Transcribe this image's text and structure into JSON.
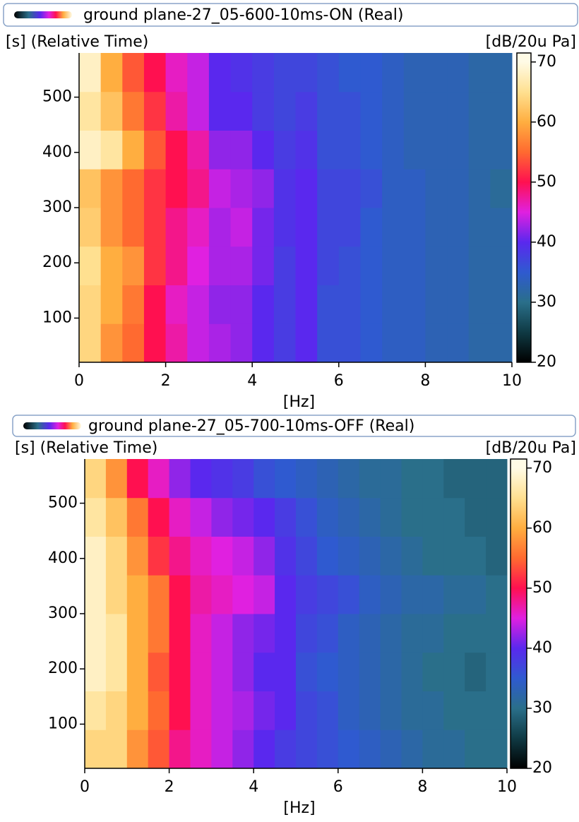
{
  "chart_data": [
    {
      "type": "heatmap",
      "title": "ground plane-27_05-600-10ms-ON (Real)",
      "y_label": "[s] (Relative Time)",
      "x_label": "[Hz]",
      "colorbar_label": "[dB/20u Pa]",
      "xlim": [
        0,
        10
      ],
      "xticks": [
        0,
        2,
        4,
        6,
        8,
        10
      ],
      "ylim": [
        20,
        580
      ],
      "yticks": [
        100,
        200,
        300,
        400,
        500
      ],
      "zlim": [
        20,
        71.5
      ],
      "zticks": [
        20,
        30,
        40,
        50,
        60,
        70
      ],
      "colorscale": [
        [
          20,
          "#000000"
        ],
        [
          25,
          "#0f3a44"
        ],
        [
          30,
          "#2a6f8a"
        ],
        [
          35,
          "#2f5ad0"
        ],
        [
          40,
          "#5a28ee"
        ],
        [
          45,
          "#e020e0"
        ],
        [
          50,
          "#ff1050"
        ],
        [
          55,
          "#ff6a30"
        ],
        [
          60,
          "#ffae40"
        ],
        [
          65,
          "#ffe090"
        ],
        [
          70,
          "#fffbe6"
        ]
      ],
      "xbins": [
        0,
        0.5,
        1,
        1.5,
        2,
        2.5,
        3,
        3.5,
        4,
        4.5,
        5,
        5.5,
        6,
        6.5,
        7,
        7.5,
        8,
        8.5,
        9,
        9.5,
        10
      ],
      "ybins": [
        20,
        90,
        160,
        230,
        300,
        370,
        440,
        510,
        580
      ],
      "values": [
        [
          64,
          58,
          55,
          50,
          47,
          44,
          43,
          42,
          40,
          38,
          40,
          36,
          36,
          35,
          34,
          34,
          33,
          33,
          32,
          32
        ],
        [
          64,
          60,
          56,
          50,
          46,
          44,
          42,
          42,
          40,
          38,
          40,
          36,
          36,
          35,
          34,
          34,
          33,
          33,
          32,
          32
        ],
        [
          65,
          60,
          58,
          52,
          48,
          45,
          43,
          43,
          41,
          38,
          40,
          37,
          36,
          35,
          34,
          34,
          33,
          33,
          32,
          32
        ],
        [
          63,
          58,
          55,
          52,
          48,
          46,
          43,
          44,
          41,
          39,
          40,
          37,
          37,
          35,
          34,
          34,
          33,
          33,
          32,
          32
        ],
        [
          62,
          58,
          55,
          52,
          50,
          48,
          44,
          43,
          42,
          39,
          40,
          37,
          37,
          36,
          34,
          34,
          33,
          33,
          32,
          31
        ],
        [
          68,
          66,
          60,
          54,
          50,
          47,
          42,
          42,
          40,
          38,
          39,
          36,
          36,
          35,
          34,
          33,
          33,
          33,
          32,
          32
        ],
        [
          66,
          62,
          56,
          52,
          47,
          44,
          40,
          40,
          38,
          37,
          38,
          36,
          36,
          35,
          34,
          33,
          33,
          33,
          32,
          32
        ],
        [
          68,
          60,
          54,
          50,
          46,
          44,
          40,
          39,
          38,
          37,
          37,
          36,
          35,
          35,
          34,
          33,
          33,
          33,
          32,
          32
        ]
      ]
    },
    {
      "type": "heatmap",
      "title": "ground plane-27_05-700-10ms-OFF (Real)",
      "y_label": "[s] (Relative Time)",
      "x_label": "[Hz]",
      "colorbar_label": "[dB/20u Pa]",
      "xlim": [
        0,
        10
      ],
      "xticks": [
        0,
        2,
        4,
        6,
        8,
        10
      ],
      "ylim": [
        20,
        580
      ],
      "yticks": [
        100,
        200,
        300,
        400,
        500
      ],
      "zlim": [
        20,
        71.5
      ],
      "zticks": [
        20,
        30,
        40,
        50,
        60,
        70
      ],
      "colorscale": [
        [
          20,
          "#000000"
        ],
        [
          25,
          "#0f3a44"
        ],
        [
          30,
          "#2a6f8a"
        ],
        [
          35,
          "#2f5ad0"
        ],
        [
          40,
          "#5a28ee"
        ],
        [
          45,
          "#e020e0"
        ],
        [
          50,
          "#ff1050"
        ],
        [
          55,
          "#ff6a30"
        ],
        [
          60,
          "#ffae40"
        ],
        [
          65,
          "#ffe090"
        ],
        [
          70,
          "#fffbe6"
        ]
      ],
      "xbins": [
        0,
        0.5,
        1,
        1.5,
        2,
        2.5,
        3,
        3.5,
        4,
        4.5,
        5,
        5.5,
        6,
        6.5,
        7,
        7.5,
        8,
        8.5,
        9,
        9.5,
        10
      ],
      "ybins": [
        20,
        90,
        160,
        230,
        300,
        370,
        440,
        510,
        580
      ],
      "values": [
        [
          64,
          64,
          58,
          54,
          48,
          46,
          44,
          42,
          40,
          38,
          37,
          36,
          35,
          34,
          33,
          32,
          31,
          31,
          30,
          30
        ],
        [
          66,
          64,
          60,
          55,
          50,
          46,
          44,
          43,
          41,
          40,
          37,
          36,
          34,
          33,
          32,
          31,
          31,
          30,
          30,
          30
        ],
        [
          68,
          66,
          60,
          54,
          50,
          46,
          44,
          42,
          40,
          40,
          36,
          35,
          34,
          33,
          32,
          31,
          30,
          30,
          29,
          30
        ],
        [
          68,
          66,
          60,
          56,
          50,
          46,
          44,
          42,
          41,
          40,
          37,
          36,
          34,
          33,
          32,
          31,
          31,
          30,
          30,
          30
        ],
        [
          68,
          64,
          60,
          56,
          50,
          47,
          46,
          45,
          44,
          40,
          38,
          37,
          36,
          34,
          33,
          32,
          32,
          31,
          31,
          30
        ],
        [
          68,
          64,
          58,
          52,
          48,
          46,
          45,
          44,
          42,
          39,
          37,
          35,
          34,
          33,
          32,
          31,
          30,
          30,
          30,
          29
        ],
        [
          66,
          62,
          56,
          50,
          46,
          44,
          42,
          41,
          40,
          38,
          36,
          34,
          33,
          32,
          31,
          30,
          30,
          30,
          29,
          29
        ],
        [
          64,
          58,
          50,
          46,
          42,
          40,
          39,
          38,
          36,
          35,
          34,
          33,
          32,
          31,
          31,
          30,
          30,
          29,
          29,
          29
        ]
      ]
    }
  ]
}
